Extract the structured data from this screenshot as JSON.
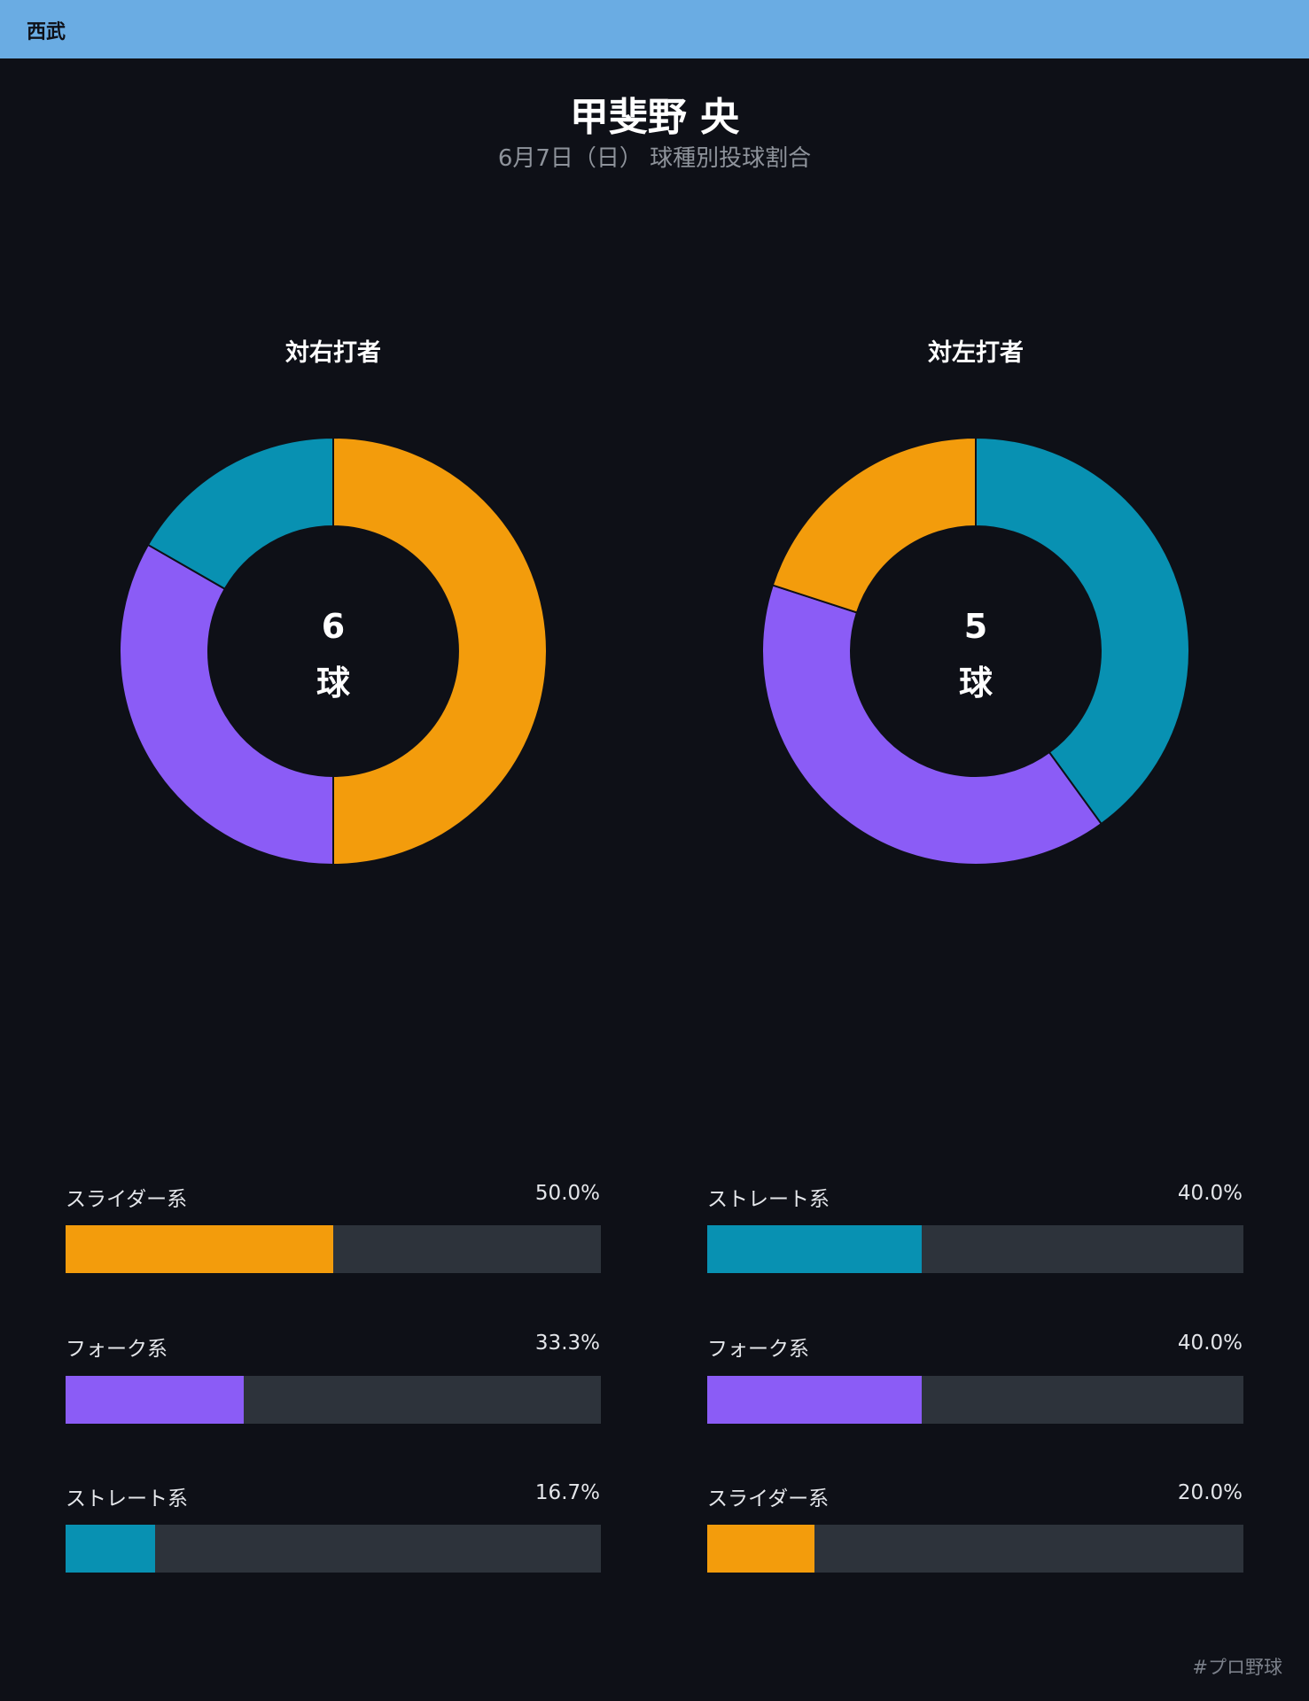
{
  "header": {
    "team": "西武"
  },
  "title": "甲斐野 央",
  "subtitle": "6月7日（日） 球種別投球割合",
  "colors": {
    "slider": "#f39c0c",
    "fork": "#8b5cf6",
    "straight": "#0891b2",
    "track": "#2d333b",
    "divider": "#0e1017"
  },
  "chart_data": [
    {
      "type": "pie",
      "title": "対右打者",
      "total": "6",
      "unit": "球",
      "slices": [
        {
          "label": "スライダー系",
          "value": 50.0,
          "pct": "50.0%",
          "color": "#f39c0c"
        },
        {
          "label": "フォーク系",
          "value": 33.3,
          "pct": "33.3%",
          "color": "#8b5cf6"
        },
        {
          "label": "ストレート系",
          "value": 16.7,
          "pct": "16.7%",
          "color": "#0891b2"
        }
      ]
    },
    {
      "type": "pie",
      "title": "対左打者",
      "total": "5",
      "unit": "球",
      "slices": [
        {
          "label": "ストレート系",
          "value": 40.0,
          "pct": "40.0%",
          "color": "#0891b2"
        },
        {
          "label": "フォーク系",
          "value": 40.0,
          "pct": "40.0%",
          "color": "#8b5cf6"
        },
        {
          "label": "スライダー系",
          "value": 20.0,
          "pct": "20.0%",
          "color": "#f39c0c"
        }
      ]
    }
  ],
  "footer": {
    "hashtag": "#プロ野球"
  }
}
